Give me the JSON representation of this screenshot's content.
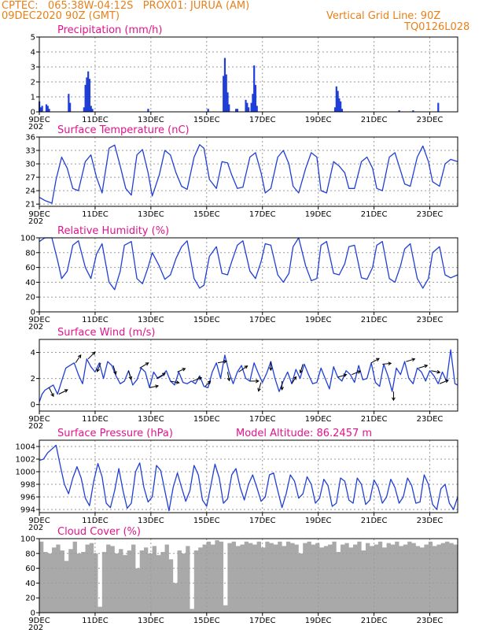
{
  "header": {
    "line1": "CPTEC:   065:38W-04:12S   PROX01: JURUA (AM)",
    "line2": "09DEC2020 90Z (GMT)",
    "grid_note": "Vertical Grid Line: 90Z",
    "code": "TQ0126L028"
  },
  "colors": {
    "header": "#e8801a",
    "panel_title": "#e0148c",
    "line": "#1f3fd6",
    "bar": "#1f3fd6",
    "cloud": "#a9a9a9",
    "arrow": "#000000"
  },
  "x_axis": {
    "ticks": [
      "9DEC",
      "11DEC",
      "13DEC",
      "15DEC",
      "17DEC",
      "19DEC",
      "21DEC",
      "23DEC"
    ],
    "tick_days": [
      0,
      2,
      4,
      6,
      8,
      10,
      12,
      14
    ],
    "day_range": [
      0,
      15
    ],
    "year_fragment": "202"
  },
  "chart_data": [
    {
      "type": "bar",
      "title": "Precipitation (mm/h)",
      "ylim": [
        0,
        5
      ],
      "yticks": [
        0,
        1,
        2,
        3,
        4,
        5
      ],
      "grid": true,
      "x_day": [
        0.0,
        0.05,
        0.1,
        0.25,
        0.3,
        0.35,
        1.05,
        1.1,
        1.6,
        1.65,
        1.7,
        1.75,
        1.8,
        1.85,
        1.9,
        3.9,
        6.05,
        6.6,
        6.65,
        6.7,
        6.75,
        6.8,
        7.05,
        7.1,
        7.4,
        7.45,
        7.5,
        7.6,
        7.65,
        7.7,
        7.75,
        7.8,
        10.6,
        10.65,
        10.7,
        10.75,
        10.8,
        10.85,
        12.9,
        13.4,
        14.3
      ],
      "values": [
        0.7,
        0.3,
        0.4,
        0.5,
        0.4,
        0.2,
        1.2,
        0.6,
        0.3,
        1.8,
        2.3,
        2.7,
        2.2,
        0.4,
        0.2,
        0.2,
        0.2,
        2.4,
        3.6,
        2.5,
        1.3,
        0.5,
        0.2,
        0.2,
        0.8,
        0.6,
        0.3,
        0.6,
        1.2,
        3.1,
        1.8,
        0.4,
        0.3,
        1.7,
        1.4,
        0.9,
        0.7,
        0.2,
        0.1,
        0.1,
        0.6
      ]
    },
    {
      "type": "line",
      "title": "Surface Temperature (nC)",
      "ylim": [
        20.5,
        36
      ],
      "yticks": [
        21,
        24,
        27,
        30,
        33,
        36
      ],
      "grid": true,
      "x_day": [
        0.0,
        0.2,
        0.45,
        0.6,
        0.8,
        1.0,
        1.2,
        1.4,
        1.65,
        1.85,
        2.05,
        2.25,
        2.5,
        2.7,
        2.9,
        3.1,
        3.3,
        3.5,
        3.7,
        3.9,
        4.05,
        4.3,
        4.5,
        4.7,
        4.9,
        5.1,
        5.3,
        5.55,
        5.75,
        5.9,
        6.1,
        6.35,
        6.55,
        6.75,
        6.9,
        7.1,
        7.3,
        7.55,
        7.75,
        7.95,
        8.1,
        8.3,
        8.55,
        8.75,
        8.95,
        9.1,
        9.3,
        9.55,
        9.75,
        9.95,
        10.1,
        10.3,
        10.55,
        10.75,
        10.95,
        11.1,
        11.3,
        11.55,
        11.75,
        11.95,
        12.1,
        12.3,
        12.55,
        12.75,
        12.95,
        13.1,
        13.3,
        13.55,
        13.75,
        13.95,
        14.1,
        14.35,
        14.55,
        14.75,
        15.0
      ],
      "values": [
        22.5,
        21.8,
        21.2,
        26.5,
        31.5,
        29.0,
        24.5,
        24.0,
        30.5,
        32.0,
        27.0,
        23.5,
        33.5,
        34.2,
        29.5,
        24.5,
        23.0,
        32.0,
        33.2,
        28.0,
        22.8,
        27.5,
        33.0,
        32.0,
        28.0,
        25.0,
        24.3,
        31.5,
        34.3,
        33.5,
        26.5,
        24.5,
        30.5,
        30.2,
        27.5,
        24.5,
        24.8,
        31.5,
        32.5,
        28.0,
        23.5,
        24.5,
        31.5,
        33.0,
        30.0,
        25.0,
        23.5,
        29.0,
        32.5,
        31.5,
        24.0,
        23.5,
        30.5,
        29.5,
        28.0,
        24.5,
        24.5,
        30.5,
        31.5,
        29.0,
        24.5,
        24.0,
        31.5,
        32.5,
        28.5,
        25.5,
        25.0,
        31.5,
        34.0,
        30.5,
        26.0,
        25.0,
        30.0,
        31.0,
        30.5
      ]
    },
    {
      "type": "line",
      "title": "Relative Humidity (%)",
      "ylim": [
        0,
        100
      ],
      "yticks": [
        0,
        20,
        40,
        60,
        80,
        100
      ],
      "grid": true,
      "x_day": [
        0.0,
        0.2,
        0.45,
        0.65,
        0.8,
        1.0,
        1.2,
        1.4,
        1.65,
        1.85,
        2.05,
        2.25,
        2.5,
        2.7,
        2.9,
        3.05,
        3.3,
        3.5,
        3.7,
        3.9,
        4.05,
        4.3,
        4.5,
        4.7,
        4.9,
        5.1,
        5.3,
        5.55,
        5.75,
        5.9,
        6.1,
        6.35,
        6.55,
        6.75,
        6.9,
        7.1,
        7.3,
        7.55,
        7.75,
        7.95,
        8.1,
        8.3,
        8.55,
        8.75,
        8.95,
        9.1,
        9.3,
        9.55,
        9.75,
        9.95,
        10.1,
        10.3,
        10.55,
        10.75,
        10.95,
        11.1,
        11.3,
        11.55,
        11.75,
        11.95,
        12.1,
        12.3,
        12.55,
        12.75,
        12.95,
        13.1,
        13.3,
        13.55,
        13.75,
        13.95,
        14.1,
        14.35,
        14.55,
        14.75,
        15.0
      ],
      "values": [
        95.0,
        100.0,
        100.0,
        70.0,
        45.0,
        55.0,
        90.0,
        96.0,
        60.0,
        45.0,
        78.0,
        92.0,
        40.0,
        30.0,
        55.0,
        90.0,
        95.0,
        45.0,
        38.0,
        60.0,
        80.0,
        62.0,
        44.0,
        50.0,
        72.0,
        88.0,
        96.0,
        45.0,
        32.0,
        36.0,
        75.0,
        88.0,
        52.0,
        50.0,
        68.0,
        90.0,
        96.0,
        55.0,
        45.0,
        68.0,
        92.0,
        90.0,
        50.0,
        40.0,
        52.0,
        88.0,
        100.0,
        62.0,
        42.0,
        45.0,
        90.0,
        95.0,
        52.0,
        50.0,
        65.0,
        88.0,
        90.0,
        46.0,
        44.0,
        60.0,
        90.0,
        95.0,
        45.0,
        40.0,
        62.0,
        85.0,
        92.0,
        45.0,
        32.0,
        45.0,
        80.0,
        88.0,
        50.0,
        46.0,
        50.0
      ]
    },
    {
      "type": "line",
      "title": "Surface Wind (m/s)",
      "ylim": [
        -0.5,
        5
      ],
      "yticks": [
        0,
        2,
        4
      ],
      "grid": true,
      "x_day": [
        0.0,
        0.1,
        0.2,
        0.35,
        0.5,
        0.65,
        0.8,
        0.95,
        1.1,
        1.25,
        1.4,
        1.55,
        1.7,
        1.85,
        2.0,
        2.15,
        2.3,
        2.45,
        2.6,
        2.75,
        2.9,
        3.05,
        3.2,
        3.35,
        3.5,
        3.65,
        3.8,
        3.95,
        4.1,
        4.25,
        4.4,
        4.55,
        4.7,
        4.85,
        5.0,
        5.15,
        5.3,
        5.45,
        5.6,
        5.75,
        5.9,
        6.05,
        6.2,
        6.35,
        6.5,
        6.65,
        6.8,
        6.95,
        7.1,
        7.25,
        7.4,
        7.55,
        7.7,
        7.85,
        8.0,
        8.15,
        8.3,
        8.45,
        8.6,
        8.75,
        8.9,
        9.05,
        9.2,
        9.35,
        9.5,
        9.65,
        9.8,
        9.95,
        10.1,
        10.25,
        10.4,
        10.55,
        10.7,
        10.85,
        11.0,
        11.15,
        11.3,
        11.45,
        11.6,
        11.75,
        11.9,
        12.05,
        12.2,
        12.35,
        12.5,
        12.65,
        12.8,
        12.95,
        13.1,
        13.25,
        13.4,
        13.55,
        13.7,
        13.85,
        14.0,
        14.15,
        14.3,
        14.45,
        14.6,
        14.75,
        14.9,
        15.0
      ],
      "values": [
        0.2,
        0.8,
        1.1,
        1.3,
        1.5,
        0.8,
        1.8,
        2.8,
        3.0,
        3.2,
        2.3,
        1.6,
        3.5,
        2.9,
        2.5,
        3.2,
        2.0,
        3.3,
        3.0,
        2.2,
        1.6,
        1.8,
        2.6,
        1.5,
        1.9,
        2.8,
        2.5,
        1.3,
        2.5,
        2.0,
        2.2,
        2.6,
        1.8,
        1.5,
        2.5,
        1.7,
        1.6,
        1.8,
        1.6,
        2.2,
        1.4,
        1.3,
        2.5,
        3.2,
        2.0,
        3.8,
        2.5,
        1.6,
        2.5,
        3.0,
        2.0,
        1.8,
        3.2,
        2.4,
        1.7,
        2.4,
        3.3,
        2.0,
        1.0,
        1.8,
        2.5,
        1.6,
        2.7,
        2.0,
        3.1,
        2.3,
        1.6,
        1.7,
        2.8,
        2.0,
        1.2,
        2.9,
        2.1,
        1.8,
        2.6,
        2.3,
        1.7,
        3.0,
        1.9,
        2.0,
        3.2,
        1.7,
        1.4,
        3.1,
        2.2,
        1.0,
        2.8,
        2.3,
        3.3,
        2.0,
        1.6,
        2.8,
        2.5,
        1.8,
        2.6,
        2.2,
        1.6,
        2.5,
        1.8,
        4.2,
        1.6,
        1.5
      ]
    },
    {
      "type": "line",
      "title": "Surface Pressure (hPa)",
      "annotation": "Model Altitude: 86.2457 m",
      "ylim": [
        993.5,
        1005
      ],
      "yticks": [
        994,
        996,
        998,
        1000,
        1002,
        1004
      ],
      "grid": true,
      "x_day": [
        0.0,
        0.15,
        0.3,
        0.45,
        0.6,
        0.75,
        0.9,
        1.05,
        1.2,
        1.35,
        1.5,
        1.65,
        1.8,
        1.95,
        2.1,
        2.25,
        2.4,
        2.55,
        2.7,
        2.85,
        3.0,
        3.15,
        3.3,
        3.45,
        3.6,
        3.75,
        3.9,
        4.05,
        4.2,
        4.35,
        4.5,
        4.65,
        4.8,
        4.95,
        5.1,
        5.25,
        5.4,
        5.55,
        5.7,
        5.85,
        6.0,
        6.15,
        6.3,
        6.45,
        6.6,
        6.75,
        6.9,
        7.05,
        7.2,
        7.35,
        7.5,
        7.65,
        7.8,
        7.95,
        8.1,
        8.25,
        8.4,
        8.55,
        8.7,
        8.85,
        9.0,
        9.15,
        9.3,
        9.45,
        9.6,
        9.75,
        9.9,
        10.05,
        10.2,
        10.35,
        10.5,
        10.65,
        10.8,
        10.95,
        11.1,
        11.25,
        11.4,
        11.55,
        11.7,
        11.85,
        12.0,
        12.15,
        12.3,
        12.45,
        12.6,
        12.75,
        12.9,
        13.05,
        13.2,
        13.35,
        13.5,
        13.65,
        13.8,
        13.95,
        14.1,
        14.25,
        14.4,
        14.55,
        14.7,
        14.85,
        15.0
      ],
      "values": [
        1001.8,
        1002.0,
        1003.0,
        1003.6,
        1004.2,
        1001.0,
        998.0,
        996.5,
        999.0,
        1000.8,
        999.0,
        995.8,
        994.6,
        998.5,
        1001.3,
        999.2,
        995.0,
        994.3,
        997.0,
        1000.5,
        997.0,
        994.2,
        995.0,
        1000.0,
        1001.4,
        997.5,
        995.2,
        996.0,
        1001.0,
        1000.2,
        997.0,
        993.8,
        997.5,
        999.8,
        997.5,
        995.3,
        997.0,
        1001.0,
        999.5,
        995.5,
        994.5,
        997.8,
        1001.2,
        999.0,
        995.0,
        995.7,
        999.5,
        1000.5,
        997.5,
        995.5,
        998.0,
        999.5,
        997.5,
        995.3,
        996.0,
        999.5,
        999.8,
        997.0,
        994.3,
        996.5,
        999.5,
        998.5,
        995.8,
        996.5,
        999.2,
        998.0,
        995.0,
        995.8,
        998.8,
        997.8,
        994.5,
        995.0,
        999.0,
        998.5,
        995.5,
        995.0,
        999.0,
        998.0,
        994.8,
        995.5,
        998.7,
        997.5,
        995.0,
        996.0,
        998.8,
        997.5,
        995.0,
        996.0,
        999.0,
        997.8,
        995.0,
        995.2,
        999.5,
        998.0,
        994.8,
        994.0,
        997.3,
        998.0,
        995.0,
        994.0,
        996.0
      ]
    },
    {
      "type": "area",
      "title": "Cloud Cover (%)",
      "ylim": [
        0,
        100
      ],
      "yticks": [
        0,
        20,
        40,
        60,
        80,
        100
      ],
      "grid": true,
      "x_day": [
        0.0,
        0.15,
        0.3,
        0.45,
        0.6,
        0.75,
        0.9,
        1.05,
        1.2,
        1.35,
        1.5,
        1.65,
        1.8,
        1.95,
        2.1,
        2.25,
        2.4,
        2.55,
        2.7,
        2.85,
        3.0,
        3.15,
        3.3,
        3.45,
        3.6,
        3.75,
        3.9,
        4.05,
        4.2,
        4.35,
        4.5,
        4.65,
        4.8,
        4.95,
        5.1,
        5.25,
        5.4,
        5.55,
        5.7,
        5.85,
        6.0,
        6.15,
        6.3,
        6.45,
        6.6,
        6.75,
        6.9,
        7.05,
        7.2,
        7.35,
        7.5,
        7.65,
        7.8,
        7.95,
        8.1,
        8.25,
        8.4,
        8.55,
        8.7,
        8.85,
        9.0,
        9.15,
        9.3,
        9.45,
        9.6,
        9.75,
        9.9,
        10.05,
        10.2,
        10.35,
        10.5,
        10.65,
        10.8,
        10.95,
        11.1,
        11.25,
        11.4,
        11.55,
        11.7,
        11.85,
        12.0,
        12.15,
        12.3,
        12.45,
        12.6,
        12.75,
        12.9,
        13.05,
        13.2,
        13.35,
        13.5,
        13.65,
        13.8,
        13.95,
        14.1,
        14.25,
        14.4,
        14.55,
        14.7,
        14.85,
        15.0
      ],
      "values": [
        96,
        82,
        80,
        88,
        92,
        84,
        70,
        86,
        96,
        80,
        82,
        92,
        94,
        80,
        8,
        82,
        92,
        90,
        80,
        86,
        78,
        84,
        92,
        60,
        84,
        88,
        80,
        90,
        78,
        82,
        92,
        72,
        40,
        84,
        80,
        90,
        5,
        84,
        88,
        92,
        96,
        92,
        98,
        96,
        10,
        94,
        96,
        90,
        92,
        96,
        94,
        92,
        96,
        88,
        96,
        94,
        92,
        96,
        90,
        96,
        94,
        92,
        80,
        94,
        96,
        92,
        94,
        88,
        90,
        92,
        96,
        82,
        92,
        94,
        88,
        92,
        96,
        84,
        94,
        90,
        92,
        96,
        88,
        94,
        92,
        96,
        90,
        92,
        96,
        94,
        90,
        88,
        92,
        96,
        90,
        92,
        94,
        96,
        94,
        92,
        96
      ]
    }
  ],
  "wind_vectors": [
    {
      "day": 0.35,
      "u": 0.5,
      "v": -1.0
    },
    {
      "day": 0.7,
      "u": 1.0,
      "v": 0.5
    },
    {
      "day": 1.3,
      "u": 0.6,
      "v": 0.9
    },
    {
      "day": 1.75,
      "u": 0.8,
      "v": 0.8
    },
    {
      "day": 2.2,
      "u": -0.4,
      "v": -1.0
    },
    {
      "day": 2.65,
      "u": 0.3,
      "v": -1.0
    },
    {
      "day": 3.2,
      "u": 0.3,
      "v": -1.0
    },
    {
      "day": 3.6,
      "u": 1.0,
      "v": 0.6
    },
    {
      "day": 3.95,
      "u": 1.0,
      "v": 0.2
    },
    {
      "day": 4.2,
      "u": 1.0,
      "v": 0.6
    },
    {
      "day": 4.7,
      "u": 1.0,
      "v": -0.2
    },
    {
      "day": 4.95,
      "u": 0.9,
      "v": 0.4
    },
    {
      "day": 5.5,
      "u": 1.0,
      "v": 0.4
    },
    {
      "day": 5.95,
      "u": 0.6,
      "v": 0.6
    },
    {
      "day": 6.4,
      "u": 1.0,
      "v": 0.2
    },
    {
      "day": 6.75,
      "u": 0.2,
      "v": -1.0
    },
    {
      "day": 7.15,
      "u": 1.0,
      "v": 0.7
    },
    {
      "day": 7.55,
      "u": 1.0,
      "v": 0.0
    },
    {
      "day": 7.95,
      "u": -0.3,
      "v": -1.0
    },
    {
      "day": 8.3,
      "u": 0.0,
      "v": -1.0
    },
    {
      "day": 8.7,
      "u": 0.0,
      "v": -1.0
    },
    {
      "day": 9.05,
      "u": 0.5,
      "v": 0.8
    },
    {
      "day": 9.45,
      "u": -0.3,
      "v": -1.0
    },
    {
      "day": 10.7,
      "u": 1.0,
      "v": 0.3
    },
    {
      "day": 11.2,
      "u": 1.0,
      "v": 0.4
    },
    {
      "day": 11.9,
      "u": 0.9,
      "v": 0.5
    },
    {
      "day": 12.3,
      "u": 1.0,
      "v": 0.1
    },
    {
      "day": 12.7,
      "u": 0.0,
      "v": -1.0
    },
    {
      "day": 13.15,
      "u": 1.0,
      "v": 0.3
    },
    {
      "day": 13.6,
      "u": 1.0,
      "v": 0.3
    },
    {
      "day": 14.05,
      "u": 1.0,
      "v": -0.2
    },
    {
      "day": 14.35,
      "u": 1.0,
      "v": 0.4
    }
  ]
}
